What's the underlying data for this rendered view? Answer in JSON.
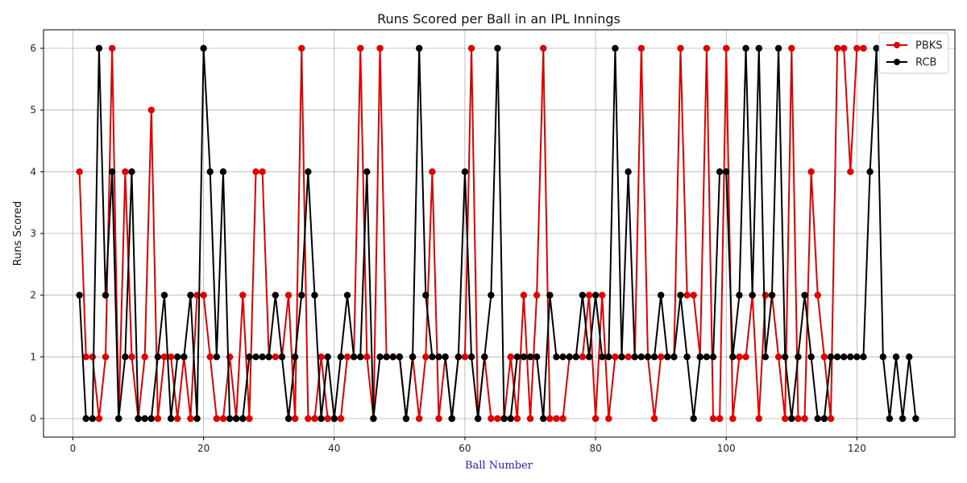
{
  "chart_data": {
    "type": "line",
    "title": "Runs Scored per Ball in an IPL Innings",
    "xlabel": "Ball Number",
    "ylabel": "Runs Scored",
    "xlim": [
      -4.5,
      135
    ],
    "ylim": [
      -0.3,
      6.3
    ],
    "x_ticks": [
      0,
      20,
      40,
      60,
      80,
      100,
      120
    ],
    "y_ticks": [
      0,
      1,
      2,
      3,
      4,
      5,
      6
    ],
    "grid": true,
    "legend_position": "top-right",
    "colors": {
      "xlabel": "#1f1fbf"
    },
    "series": [
      {
        "name": "PBKS",
        "color": "#e00000",
        "values": [
          4,
          1,
          1,
          0,
          1,
          6,
          0,
          4,
          1,
          0,
          1,
          5,
          0,
          1,
          1,
          0,
          1,
          0,
          2,
          2,
          1,
          0,
          0,
          1,
          0,
          2,
          0,
          4,
          4,
          1,
          1,
          1,
          2,
          0,
          6,
          0,
          0,
          1,
          0,
          0,
          0,
          1,
          1,
          6,
          1,
          0,
          6,
          1,
          1,
          1,
          0,
          1,
          0,
          1,
          4,
          0,
          1,
          0,
          1,
          1,
          6,
          0,
          1,
          0,
          0,
          0,
          1,
          0,
          2,
          0,
          2,
          6,
          0,
          0,
          0,
          1,
          1,
          1,
          2,
          0,
          2,
          0,
          1,
          1,
          1,
          1,
          6,
          1,
          0,
          1,
          1,
          1,
          6,
          2,
          2,
          1,
          6,
          0,
          0,
          6,
          0,
          1,
          1,
          2,
          0,
          2,
          2,
          1,
          0,
          6,
          0,
          0,
          4,
          2,
          1,
          0,
          6,
          6,
          4,
          6,
          6
        ]
      },
      {
        "name": "RCB",
        "color": "#000000",
        "values": [
          2,
          0,
          0,
          6,
          2,
          4,
          0,
          1,
          4,
          0,
          0,
          0,
          1,
          2,
          0,
          1,
          1,
          2,
          0,
          6,
          4,
          1,
          4,
          0,
          0,
          0,
          1,
          1,
          1,
          1,
          2,
          1,
          0,
          1,
          2,
          4,
          2,
          0,
          1,
          0,
          1,
          2,
          1,
          1,
          4,
          0,
          1,
          1,
          1,
          1,
          0,
          1,
          6,
          2,
          1,
          1,
          1,
          0,
          1,
          4,
          1,
          0,
          1,
          2,
          6,
          0,
          0,
          1,
          1,
          1,
          1,
          0,
          2,
          1,
          1,
          1,
          1,
          2,
          1,
          2,
          1,
          1,
          6,
          1,
          4,
          1,
          1,
          1,
          1,
          2,
          1,
          1,
          2,
          1,
          0,
          1,
          1,
          1,
          4,
          4,
          1,
          2,
          6,
          2,
          6,
          1,
          2,
          6,
          1,
          0,
          1,
          2,
          1,
          0,
          0,
          1,
          1,
          1,
          1,
          1,
          1,
          4,
          6,
          1,
          0,
          1,
          0,
          1,
          0
        ]
      }
    ]
  }
}
